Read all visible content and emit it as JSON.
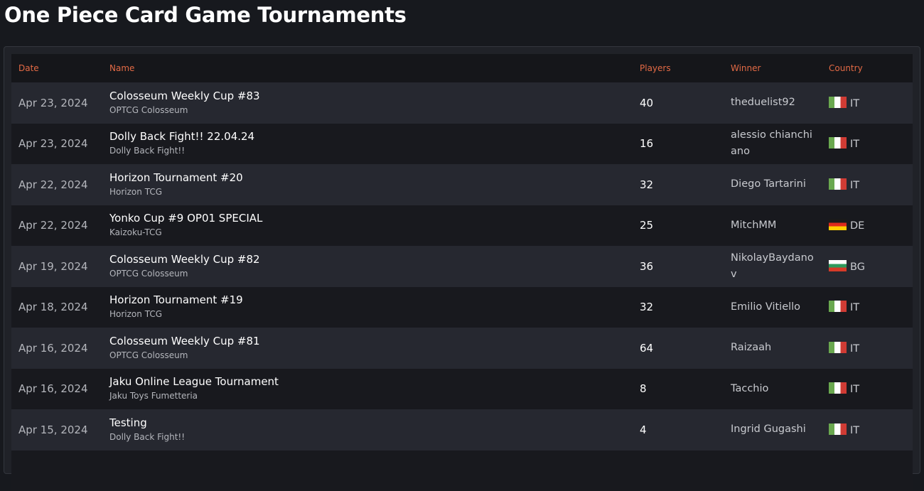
{
  "page_title": "One Piece Card Game Tournaments",
  "columns": {
    "date": "Date",
    "name": "Name",
    "players": "Players",
    "winner": "Winner",
    "country": "Country"
  },
  "flags": {
    "IT": [
      "#6aa84f",
      "#ffffff",
      "#d03b34"
    ],
    "DE": [
      "#1a1a1a",
      "#dd2a1c",
      "#ffce00"
    ],
    "BG": [
      "#ffffff",
      "#2e9a5c",
      "#d63b28"
    ]
  },
  "rows": [
    {
      "date": "Apr 23, 2024",
      "name": "Colosseum Weekly Cup #83",
      "organizer": "OPTCG Colosseum",
      "players": "40",
      "winner": "theduelist92",
      "country": "IT"
    },
    {
      "date": "Apr 23, 2024",
      "name": "Dolly Back Fight!! 22.04.24",
      "organizer": "Dolly Back Fight!!",
      "players": "16",
      "winner": "alessio chianchiano",
      "country": "IT"
    },
    {
      "date": "Apr 22, 2024",
      "name": "Horizon Tournament #20",
      "organizer": "Horizon TCG",
      "players": "32",
      "winner": "Diego Tartarini",
      "country": "IT"
    },
    {
      "date": "Apr 22, 2024",
      "name": "Yonko Cup #9 OP01 SPECIAL",
      "organizer": "Kaizoku-TCG",
      "players": "25",
      "winner": "MitchMM",
      "country": "DE"
    },
    {
      "date": "Apr 19, 2024",
      "name": "Colosseum Weekly Cup #82",
      "organizer": "OPTCG Colosseum",
      "players": "36",
      "winner": "NikolayBaydanov",
      "country": "BG"
    },
    {
      "date": "Apr 18, 2024",
      "name": "Horizon Tournament #19",
      "organizer": "Horizon TCG",
      "players": "32",
      "winner": "Emilio Vitiello",
      "country": "IT"
    },
    {
      "date": "Apr 16, 2024",
      "name": "Colosseum Weekly Cup #81",
      "organizer": "OPTCG Colosseum",
      "players": "64",
      "winner": "Raizaah",
      "country": "IT"
    },
    {
      "date": "Apr 16, 2024",
      "name": "Jaku Online League Tournament",
      "organizer": "Jaku Toys Fumetteria",
      "players": "8",
      "winner": "Tacchio",
      "country": "IT"
    },
    {
      "date": "Apr 15, 2024",
      "name": "Testing",
      "organizer": "Dolly Back Fight!!",
      "players": "4",
      "winner": "Ingrid Gugashi",
      "country": "IT"
    }
  ]
}
